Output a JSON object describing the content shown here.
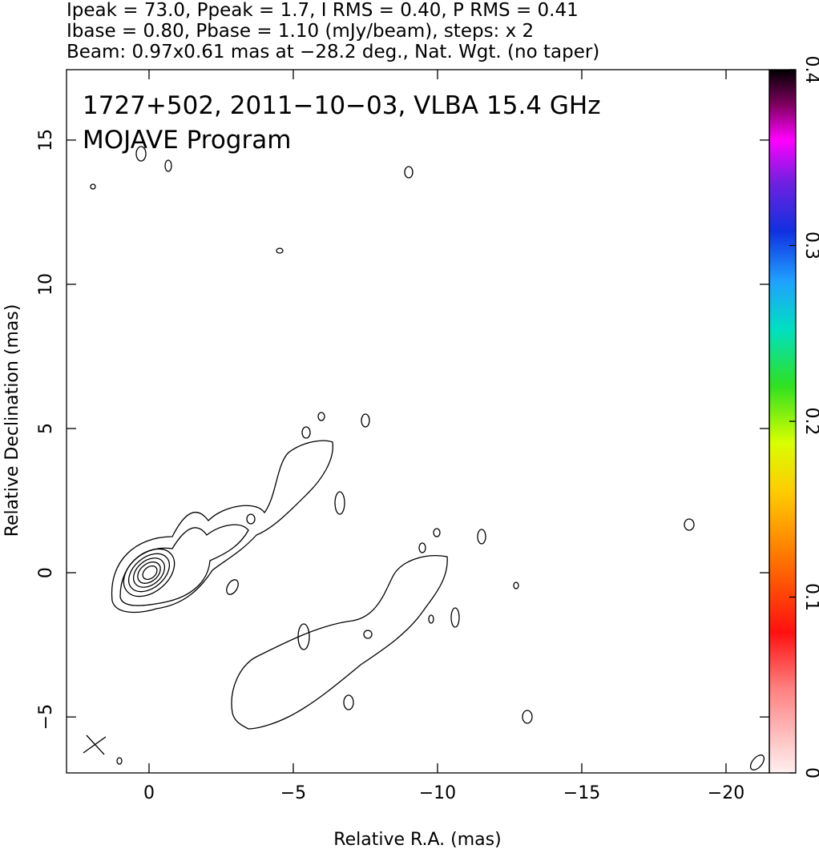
{
  "chart_data": {
    "type": "contour",
    "header": [
      "Ipeak = 73.0, Ppeak = 1.7, I RMS = 0.40, P RMS = 0.41",
      "Ibase = 0.80, Pbase = 1.10 (mJy/beam), steps: x 2",
      "Beam: 0.97x0.61 mas at −28.2 deg., Nat. Wgt. (no taper)"
    ],
    "labels": [
      "1727+502, 2011−10−03, VLBA 15.4 GHz",
      "MOJAVE Program"
    ],
    "x_label": "Relative R.A. (mas)",
    "y_label": "Relative Declination (mas)",
    "xlim": [
      2.86,
      -21.5
    ],
    "xticks": [
      0,
      {
        "value": -5,
        "label": "−5"
      },
      {
        "value": -10,
        "label": "−10"
      },
      {
        "value": -15,
        "label": "−15"
      },
      {
        "value": -20,
        "label": "−20"
      }
    ],
    "ylim": [
      -6.94,
      17.44
    ],
    "yticks": [
      {
        "value": -5,
        "label": "−5"
      },
      0,
      5,
      10,
      15
    ],
    "colorbar_lim": [
      0,
      0.4
    ],
    "colorbar_ticks": [
      0,
      0.1,
      0.2,
      0.3,
      0.4
    ]
  }
}
